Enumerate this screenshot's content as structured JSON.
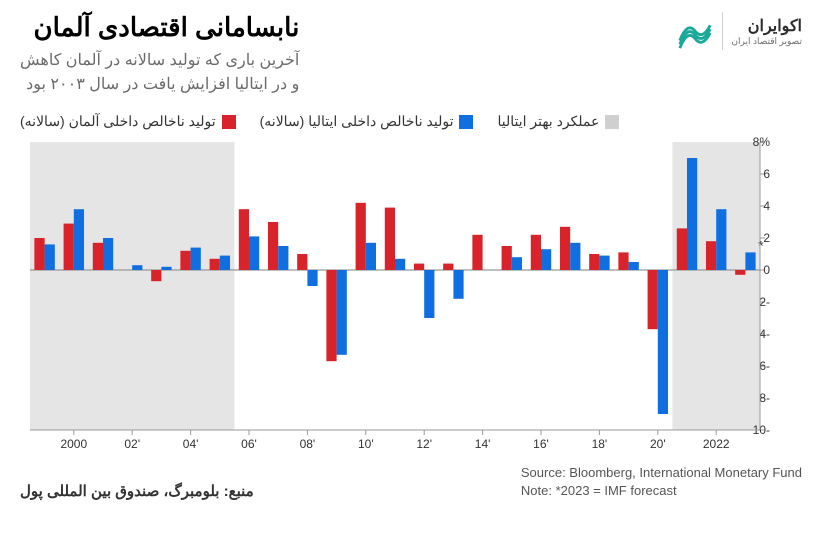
{
  "header": {
    "title": "نابسامانی اقتصادی آلمان",
    "subtitle_line1": "آخرین باری که تولید سالانه در آلمان کاهش",
    "subtitle_line2": "و در ایتالیا افزایش یافت در سال ۲۰۰۳ بود"
  },
  "logo": {
    "name": "اکوایران",
    "tagline": "تصویر اقتصاد ایران",
    "stroke_color": "#1aa89a",
    "divider_color": "#cfcfcf"
  },
  "legend": {
    "germany": {
      "label": "تولید ناخالص داخلی آلمان (سالانه)",
      "color": "#d8232a"
    },
    "italy": {
      "label": "تولید ناخالص داخلی ایتالیا (سالانه)",
      "color": "#0f6fe0"
    },
    "outperform": {
      "label": "عملکرد بهتر ایتالیا",
      "color": "#cfcfcf"
    }
  },
  "chart": {
    "type": "bar",
    "background_color": "#ffffff",
    "shade_color": "#cfcfcf",
    "axis_color": "#999999",
    "tick_color": "#999999",
    "bar_width_ratio": 0.35,
    "ymin": -10,
    "ymax": 8,
    "ytick_step": 2,
    "y_axis_side": "right",
    "top_tick_label": "8%",
    "years": [
      1999,
      2000,
      2001,
      2002,
      2003,
      2004,
      2005,
      2006,
      2007,
      2008,
      2009,
      2010,
      2011,
      2012,
      2013,
      2014,
      2015,
      2016,
      2017,
      2018,
      2019,
      2020,
      2021,
      2022,
      2023
    ],
    "x_ticks": [
      "2000",
      "'02",
      "'04",
      "'06",
      "'08",
      "'10",
      "'12",
      "'14",
      "'16",
      "'18",
      "'20",
      "2022"
    ],
    "x_tick_years": [
      2000,
      2002,
      2004,
      2006,
      2008,
      2010,
      2012,
      2014,
      2016,
      2018,
      2020,
      2022
    ],
    "germany_color": "#d8232a",
    "italy_color": "#0f6fe0",
    "germany": [
      2.0,
      2.9,
      1.7,
      0.0,
      -0.7,
      1.2,
      0.7,
      3.8,
      3.0,
      1.0,
      -5.7,
      4.2,
      3.9,
      0.4,
      0.4,
      2.2,
      1.5,
      2.2,
      2.7,
      1.0,
      1.1,
      -3.7,
      2.6,
      1.8,
      -0.3
    ],
    "italy": [
      1.6,
      3.8,
      2.0,
      0.3,
      0.2,
      1.4,
      0.9,
      2.1,
      1.5,
      -1.0,
      -5.3,
      1.7,
      0.7,
      -3.0,
      -1.8,
      0.0,
      0.8,
      1.3,
      1.7,
      0.9,
      0.5,
      -9.0,
      7.0,
      3.8,
      1.1
    ],
    "shaded_ranges": [
      [
        1999,
        2005
      ],
      [
        2021,
        2023
      ]
    ],
    "forecast_year": 2023,
    "asterisk": "*"
  },
  "footer": {
    "source_en": "Source: Bloomberg, International Monetary Fund",
    "note_en": "Note: *2023 = IMF forecast",
    "source_fa": "منبع: بلومبرگ، صندوق بین المللی پول"
  }
}
